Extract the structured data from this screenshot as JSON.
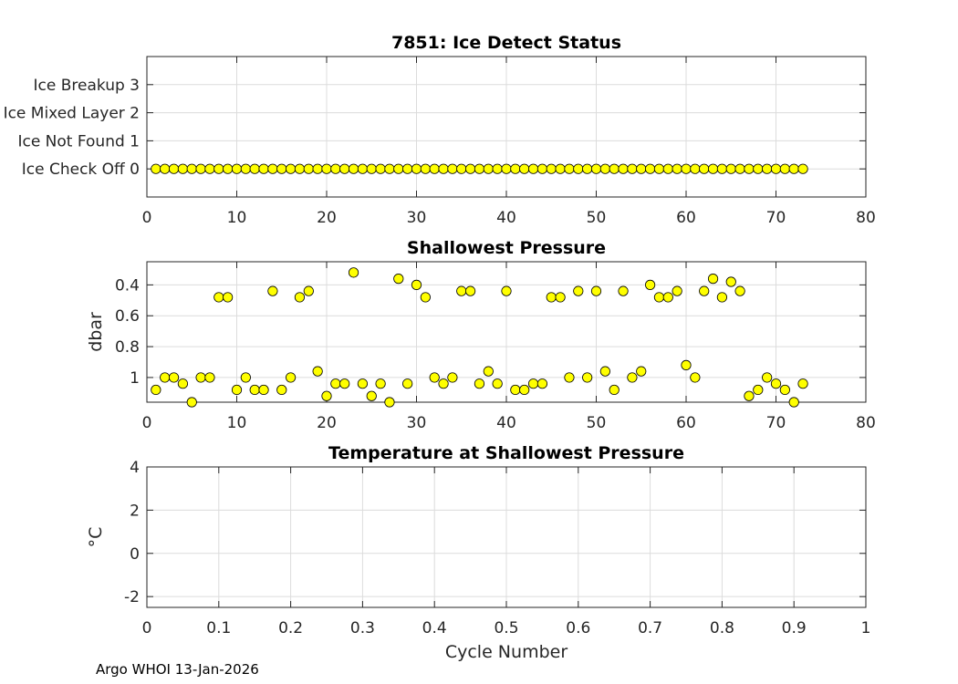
{
  "footer": "Argo WHOI 13-Jan-2026",
  "colors": {
    "marker_fill": "#ffff00",
    "marker_edge": "#000000",
    "grid": "#dcdcdc",
    "axis": "#262626"
  },
  "chart_data": [
    {
      "type": "scatter",
      "title": "7851: Ice Detect Status",
      "xlabel": "",
      "ylabel": "",
      "xlim": [
        0,
        80
      ],
      "ylim": [
        -1,
        4
      ],
      "x_ticks": [
        0,
        10,
        20,
        30,
        40,
        50,
        60,
        70,
        80
      ],
      "y_ticks": [
        0,
        1,
        2,
        3
      ],
      "y_tick_labels": [
        "Ice Check Off 0",
        "Ice Not Found 1",
        "Ice Mixed Layer 2",
        "Ice Breakup 3"
      ],
      "grid": true,
      "x": [
        1,
        2,
        3,
        4,
        5,
        6,
        7,
        8,
        9,
        10,
        11,
        12,
        13,
        14,
        15,
        16,
        17,
        18,
        19,
        20,
        21,
        22,
        23,
        24,
        25,
        26,
        27,
        28,
        29,
        30,
        31,
        32,
        33,
        34,
        35,
        36,
        37,
        38,
        39,
        40,
        41,
        42,
        43,
        44,
        45,
        46,
        47,
        48,
        49,
        50,
        51,
        52,
        53,
        54,
        55,
        56,
        57,
        58,
        59,
        60,
        61,
        62,
        63,
        64,
        65,
        66,
        67,
        68,
        69,
        70,
        71,
        72,
        73
      ],
      "y": [
        0,
        0,
        0,
        0,
        0,
        0,
        0,
        0,
        0,
        0,
        0,
        0,
        0,
        0,
        0,
        0,
        0,
        0,
        0,
        0,
        0,
        0,
        0,
        0,
        0,
        0,
        0,
        0,
        0,
        0,
        0,
        0,
        0,
        0,
        0,
        0,
        0,
        0,
        0,
        0,
        0,
        0,
        0,
        0,
        0,
        0,
        0,
        0,
        0,
        0,
        0,
        0,
        0,
        0,
        0,
        0,
        0,
        0,
        0,
        0,
        0,
        0,
        0,
        0,
        0,
        0,
        0,
        0,
        0,
        0,
        0,
        0,
        0
      ]
    },
    {
      "type": "scatter",
      "title": "Shallowest Pressure",
      "xlabel": "",
      "ylabel": "dbar",
      "xlim": [
        0,
        80
      ],
      "ylim": [
        0.25,
        1.16
      ],
      "y_reversed": true,
      "x_ticks": [
        0,
        10,
        20,
        30,
        40,
        50,
        60,
        70,
        80
      ],
      "y_ticks": [
        0.4,
        0.6,
        0.8,
        1.0
      ],
      "y_tick_labels": [
        "0.4",
        "0.6",
        "0.8",
        "1"
      ],
      "grid": true,
      "x": [
        1,
        2,
        3,
        4,
        5,
        6,
        7,
        8,
        9,
        10,
        11,
        12,
        13,
        14,
        15,
        16,
        17,
        18,
        19,
        20,
        21,
        22,
        23,
        24,
        25,
        26,
        27,
        28,
        29,
        30,
        31,
        32,
        33,
        34,
        35,
        36,
        37,
        38,
        39,
        40,
        41,
        42,
        43,
        44,
        45,
        46,
        47,
        48,
        49,
        50,
        51,
        52,
        53,
        54,
        55,
        56,
        57,
        58,
        59,
        60,
        61,
        62,
        63,
        64,
        65,
        66,
        67,
        68,
        69,
        70,
        71,
        72,
        73
      ],
      "y": [
        1.08,
        1.0,
        1.0,
        1.04,
        1.16,
        1.0,
        1.0,
        0.48,
        0.48,
        1.08,
        1.0,
        1.08,
        1.08,
        0.44,
        1.08,
        1.0,
        0.48,
        0.44,
        0.96,
        1.12,
        1.04,
        1.04,
        0.32,
        1.04,
        1.12,
        1.04,
        1.16,
        0.36,
        1.04,
        0.4,
        0.48,
        1.0,
        1.04,
        1.0,
        0.44,
        0.44,
        1.04,
        0.96,
        1.04,
        0.44,
        1.08,
        1.08,
        1.04,
        1.04,
        0.48,
        0.48,
        1.0,
        0.44,
        1.0,
        0.44,
        0.96,
        1.08,
        0.44,
        1.0,
        0.96,
        0.4,
        0.48,
        0.48,
        0.44,
        0.92,
        1.0,
        0.44,
        0.36,
        0.48,
        0.38,
        0.44,
        1.12,
        1.08,
        1.0,
        1.04,
        1.08,
        1.16,
        1.04
      ]
    },
    {
      "type": "scatter",
      "title": "Temperature at Shallowest Pressure",
      "xlabel": "Cycle Number",
      "ylabel": "°C",
      "xlim": [
        0,
        1
      ],
      "ylim": [
        -2.5,
        4
      ],
      "x_ticks": [
        0,
        0.1,
        0.2,
        0.3,
        0.4,
        0.5,
        0.6,
        0.7,
        0.8,
        0.9,
        1
      ],
      "x_tick_labels": [
        "0",
        "0.1",
        "0.2",
        "0.3",
        "0.4",
        "0.5",
        "0.6",
        "0.7",
        "0.8",
        "0.9",
        "1"
      ],
      "y_ticks": [
        -2,
        0,
        2,
        4
      ],
      "y_tick_labels": [
        "-2",
        "0",
        "2",
        "4"
      ],
      "grid": true,
      "x": [],
      "y": []
    }
  ]
}
